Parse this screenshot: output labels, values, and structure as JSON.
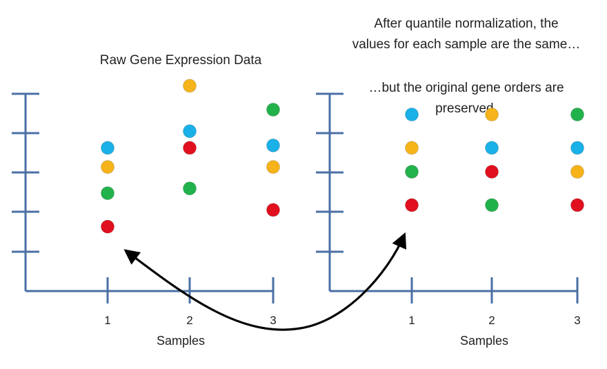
{
  "left_panel": {
    "title": "Raw Gene Expression Data",
    "xlabel": "Samples",
    "x_ticks": [
      "1",
      "2",
      "3"
    ]
  },
  "right_panel": {
    "note_lines": [
      "After quantile normalization, the",
      "values for each sample are the same…",
      "",
      "…but the original gene orders are",
      "preserved."
    ],
    "xlabel": "Samples",
    "x_ticks": [
      "1",
      "2",
      "3"
    ]
  },
  "colors": {
    "axis": "#4a6fa5",
    "arrow": "#000000",
    "blue": "#1ab0e8",
    "orange": "#f6b41a",
    "green": "#22b24c",
    "red": "#e0101e"
  },
  "chart_data": [
    {
      "type": "scatter",
      "title": "Raw Gene Expression Data",
      "xlabel": "Samples",
      "ylabel": "",
      "categories": [
        "1",
        "2",
        "3"
      ],
      "ylim": [
        0,
        5
      ],
      "series": [
        {
          "color": "blue",
          "values": [
            3.0,
            3.35,
            3.05
          ]
        },
        {
          "color": "orange",
          "values": [
            2.6,
            4.3,
            2.6
          ]
        },
        {
          "color": "green",
          "values": [
            2.05,
            2.15,
            3.8
          ]
        },
        {
          "color": "red",
          "values": [
            1.35,
            3.0,
            1.7
          ]
        }
      ]
    },
    {
      "type": "scatter",
      "title": "",
      "xlabel": "Samples",
      "ylabel": "",
      "categories": [
        "1",
        "2",
        "3"
      ],
      "ylim": [
        0,
        5
      ],
      "series": [
        {
          "color": "blue",
          "values": [
            3.7,
            3.0,
            3.0
          ]
        },
        {
          "color": "orange",
          "values": [
            3.0,
            3.7,
            2.5
          ]
        },
        {
          "color": "green",
          "values": [
            2.5,
            1.8,
            3.7
          ]
        },
        {
          "color": "red",
          "values": [
            1.8,
            2.5,
            1.8
          ]
        }
      ]
    }
  ]
}
